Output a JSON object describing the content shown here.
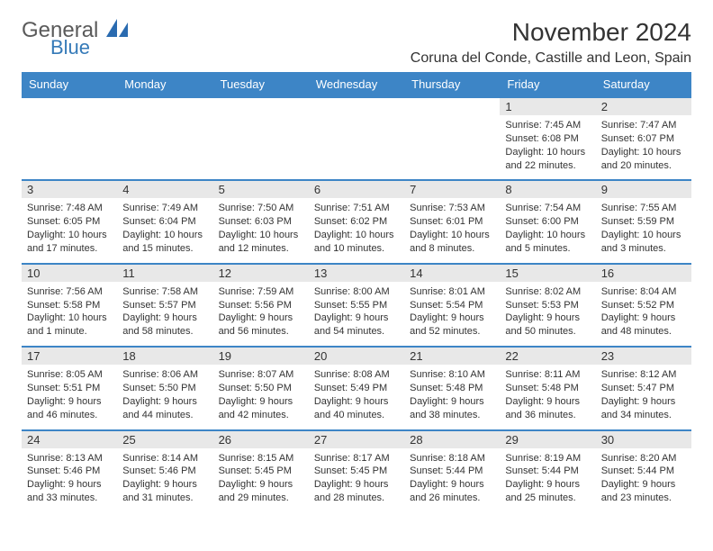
{
  "logo": {
    "line1": "General",
    "line2": "Blue"
  },
  "title": "November 2024",
  "location": "Coruna del Conde, Castille and Leon, Spain",
  "colors": {
    "header_bg": "#3d85c6",
    "header_fg": "#ffffff",
    "daynum_bg": "#e8e8e8",
    "rule": "#3d85c6",
    "logo_gray": "#5a5a5a",
    "logo_blue": "#357ab8"
  },
  "weekdays": [
    "Sunday",
    "Monday",
    "Tuesday",
    "Wednesday",
    "Thursday",
    "Friday",
    "Saturday"
  ],
  "weeks": [
    [
      {
        "n": "",
        "sr": "",
        "ss": "",
        "dl": ""
      },
      {
        "n": "",
        "sr": "",
        "ss": "",
        "dl": ""
      },
      {
        "n": "",
        "sr": "",
        "ss": "",
        "dl": ""
      },
      {
        "n": "",
        "sr": "",
        "ss": "",
        "dl": ""
      },
      {
        "n": "",
        "sr": "",
        "ss": "",
        "dl": ""
      },
      {
        "n": "1",
        "sr": "Sunrise: 7:45 AM",
        "ss": "Sunset: 6:08 PM",
        "dl": "Daylight: 10 hours and 22 minutes."
      },
      {
        "n": "2",
        "sr": "Sunrise: 7:47 AM",
        "ss": "Sunset: 6:07 PM",
        "dl": "Daylight: 10 hours and 20 minutes."
      }
    ],
    [
      {
        "n": "3",
        "sr": "Sunrise: 7:48 AM",
        "ss": "Sunset: 6:05 PM",
        "dl": "Daylight: 10 hours and 17 minutes."
      },
      {
        "n": "4",
        "sr": "Sunrise: 7:49 AM",
        "ss": "Sunset: 6:04 PM",
        "dl": "Daylight: 10 hours and 15 minutes."
      },
      {
        "n": "5",
        "sr": "Sunrise: 7:50 AM",
        "ss": "Sunset: 6:03 PM",
        "dl": "Daylight: 10 hours and 12 minutes."
      },
      {
        "n": "6",
        "sr": "Sunrise: 7:51 AM",
        "ss": "Sunset: 6:02 PM",
        "dl": "Daylight: 10 hours and 10 minutes."
      },
      {
        "n": "7",
        "sr": "Sunrise: 7:53 AM",
        "ss": "Sunset: 6:01 PM",
        "dl": "Daylight: 10 hours and 8 minutes."
      },
      {
        "n": "8",
        "sr": "Sunrise: 7:54 AM",
        "ss": "Sunset: 6:00 PM",
        "dl": "Daylight: 10 hours and 5 minutes."
      },
      {
        "n": "9",
        "sr": "Sunrise: 7:55 AM",
        "ss": "Sunset: 5:59 PM",
        "dl": "Daylight: 10 hours and 3 minutes."
      }
    ],
    [
      {
        "n": "10",
        "sr": "Sunrise: 7:56 AM",
        "ss": "Sunset: 5:58 PM",
        "dl": "Daylight: 10 hours and 1 minute."
      },
      {
        "n": "11",
        "sr": "Sunrise: 7:58 AM",
        "ss": "Sunset: 5:57 PM",
        "dl": "Daylight: 9 hours and 58 minutes."
      },
      {
        "n": "12",
        "sr": "Sunrise: 7:59 AM",
        "ss": "Sunset: 5:56 PM",
        "dl": "Daylight: 9 hours and 56 minutes."
      },
      {
        "n": "13",
        "sr": "Sunrise: 8:00 AM",
        "ss": "Sunset: 5:55 PM",
        "dl": "Daylight: 9 hours and 54 minutes."
      },
      {
        "n": "14",
        "sr": "Sunrise: 8:01 AM",
        "ss": "Sunset: 5:54 PM",
        "dl": "Daylight: 9 hours and 52 minutes."
      },
      {
        "n": "15",
        "sr": "Sunrise: 8:02 AM",
        "ss": "Sunset: 5:53 PM",
        "dl": "Daylight: 9 hours and 50 minutes."
      },
      {
        "n": "16",
        "sr": "Sunrise: 8:04 AM",
        "ss": "Sunset: 5:52 PM",
        "dl": "Daylight: 9 hours and 48 minutes."
      }
    ],
    [
      {
        "n": "17",
        "sr": "Sunrise: 8:05 AM",
        "ss": "Sunset: 5:51 PM",
        "dl": "Daylight: 9 hours and 46 minutes."
      },
      {
        "n": "18",
        "sr": "Sunrise: 8:06 AM",
        "ss": "Sunset: 5:50 PM",
        "dl": "Daylight: 9 hours and 44 minutes."
      },
      {
        "n": "19",
        "sr": "Sunrise: 8:07 AM",
        "ss": "Sunset: 5:50 PM",
        "dl": "Daylight: 9 hours and 42 minutes."
      },
      {
        "n": "20",
        "sr": "Sunrise: 8:08 AM",
        "ss": "Sunset: 5:49 PM",
        "dl": "Daylight: 9 hours and 40 minutes."
      },
      {
        "n": "21",
        "sr": "Sunrise: 8:10 AM",
        "ss": "Sunset: 5:48 PM",
        "dl": "Daylight: 9 hours and 38 minutes."
      },
      {
        "n": "22",
        "sr": "Sunrise: 8:11 AM",
        "ss": "Sunset: 5:48 PM",
        "dl": "Daylight: 9 hours and 36 minutes."
      },
      {
        "n": "23",
        "sr": "Sunrise: 8:12 AM",
        "ss": "Sunset: 5:47 PM",
        "dl": "Daylight: 9 hours and 34 minutes."
      }
    ],
    [
      {
        "n": "24",
        "sr": "Sunrise: 8:13 AM",
        "ss": "Sunset: 5:46 PM",
        "dl": "Daylight: 9 hours and 33 minutes."
      },
      {
        "n": "25",
        "sr": "Sunrise: 8:14 AM",
        "ss": "Sunset: 5:46 PM",
        "dl": "Daylight: 9 hours and 31 minutes."
      },
      {
        "n": "26",
        "sr": "Sunrise: 8:15 AM",
        "ss": "Sunset: 5:45 PM",
        "dl": "Daylight: 9 hours and 29 minutes."
      },
      {
        "n": "27",
        "sr": "Sunrise: 8:17 AM",
        "ss": "Sunset: 5:45 PM",
        "dl": "Daylight: 9 hours and 28 minutes."
      },
      {
        "n": "28",
        "sr": "Sunrise: 8:18 AM",
        "ss": "Sunset: 5:44 PM",
        "dl": "Daylight: 9 hours and 26 minutes."
      },
      {
        "n": "29",
        "sr": "Sunrise: 8:19 AM",
        "ss": "Sunset: 5:44 PM",
        "dl": "Daylight: 9 hours and 25 minutes."
      },
      {
        "n": "30",
        "sr": "Sunrise: 8:20 AM",
        "ss": "Sunset: 5:44 PM",
        "dl": "Daylight: 9 hours and 23 minutes."
      }
    ]
  ]
}
